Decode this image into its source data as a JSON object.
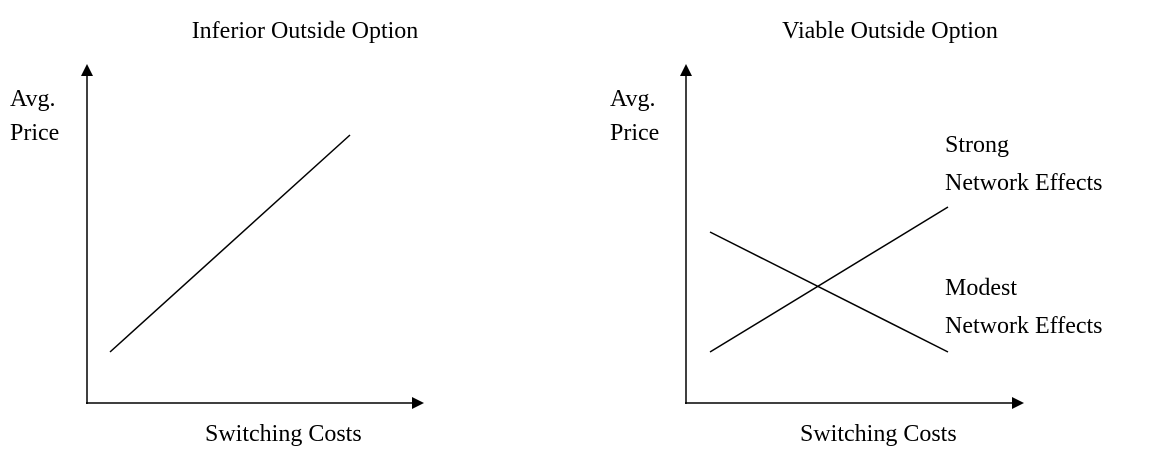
{
  "panels": [
    {
      "title": "Inferior Outside Option",
      "y_label": [
        "Avg.",
        "Price"
      ],
      "x_label": "Switching Costs",
      "annotations": []
    },
    {
      "title": "Viable Outside Option",
      "y_label": [
        "Avg.",
        "Price"
      ],
      "x_label": "Switching Costs",
      "annotations": [
        [
          "Strong",
          "Network Effects"
        ],
        [
          "Modest",
          "Network Effects"
        ]
      ]
    }
  ]
}
